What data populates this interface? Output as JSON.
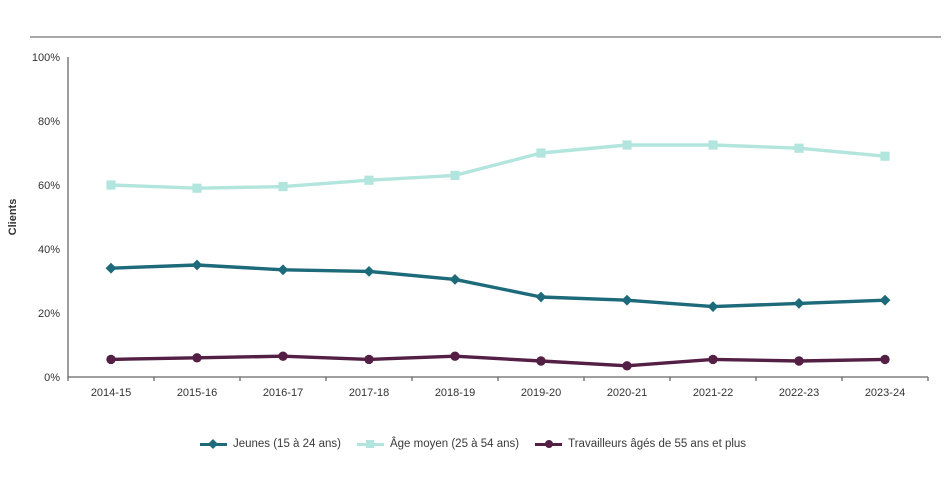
{
  "chart_data": {
    "type": "line",
    "title": "",
    "ylabel": "Clients",
    "ylim": [
      0,
      100
    ],
    "yticks": [
      0,
      20,
      40,
      60,
      80,
      100
    ],
    "ytick_labels": [
      "0%",
      "20%",
      "40%",
      "60%",
      "80%",
      "100%"
    ],
    "categories": [
      "2014-15",
      "2015-16",
      "2016-17",
      "2017-18",
      "2018-19",
      "2019-20",
      "2020-21",
      "2021-22",
      "2022-23",
      "2023-24"
    ],
    "series": [
      {
        "name": "Jeunes (15 à 24 ans)",
        "marker": "diamond",
        "color": "#1c6a7a",
        "values": [
          34,
          35,
          33.5,
          33,
          30.5,
          25,
          24,
          22,
          23,
          24
        ]
      },
      {
        "name": "Âge moyen (25 à 54 ans)",
        "marker": "square",
        "color": "#b2e5dd",
        "values": [
          60,
          59,
          59.5,
          61.5,
          63,
          70,
          72.5,
          72.5,
          71.5,
          69
        ]
      },
      {
        "name": "Travailleurs âgés de 55 ans et plus",
        "marker": "circle",
        "color": "#531f44",
        "values": [
          5.5,
          6,
          6.5,
          5.5,
          6.5,
          5,
          3.5,
          5.5,
          5,
          5.5
        ]
      }
    ],
    "grid": false,
    "legend_position": "bottom",
    "axis_color": "#666666",
    "text_color": "#333333",
    "plot_border_top_color": "#8c8c8c"
  }
}
